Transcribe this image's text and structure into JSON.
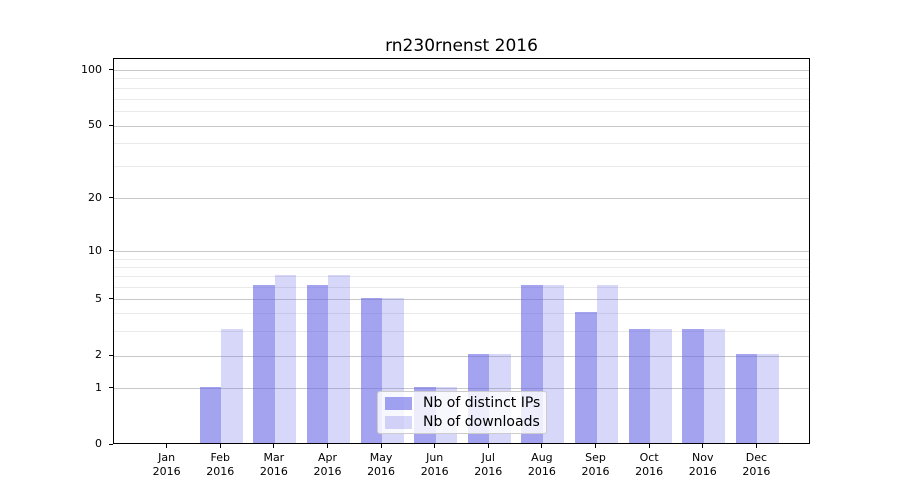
{
  "title": "rn230rnenst 2016",
  "chart_data": {
    "type": "bar",
    "title": "rn230rnenst 2016",
    "categories": [
      "Jan",
      "Feb",
      "Mar",
      "Apr",
      "May",
      "Jun",
      "Jul",
      "Aug",
      "Sep",
      "Oct",
      "Nov",
      "Dec"
    ],
    "category_sub_label": "2016",
    "series": [
      {
        "name": "Nb of distinct IPs",
        "color": "rgba(102,102,230,0.60)",
        "values": [
          0,
          1,
          6,
          6,
          5,
          1,
          2,
          6,
          4,
          3,
          3,
          2
        ]
      },
      {
        "name": "Nb of downloads",
        "color": "rgba(102,102,230,0.26)",
        "values": [
          0,
          3,
          7,
          7,
          5,
          1,
          2,
          6,
          6,
          3,
          3,
          2
        ]
      }
    ],
    "xlabel": "",
    "ylabel": "",
    "y_axis": {
      "scale": "symlog",
      "ylim": [
        0,
        115
      ],
      "major_ticks": [
        0,
        1,
        2,
        5,
        10,
        20,
        50,
        100
      ],
      "minor_ticks": [
        3,
        4,
        6,
        7,
        8,
        9,
        30,
        40,
        60,
        70,
        80,
        90
      ],
      "anchors": [
        [
          0,
          0
        ],
        [
          1,
          0.1453
        ],
        [
          2,
          0.2296
        ],
        [
          5,
          0.3761
        ],
        [
          10,
          0.5006
        ],
        [
          20,
          0.6381
        ],
        [
          50,
          0.8262
        ],
        [
          100,
          0.9702
        ],
        [
          115,
          1.0
        ]
      ]
    },
    "grid": true,
    "legend_position": "lower-center",
    "bar_group_width_ratio": 0.8,
    "colors": {
      "grid_major": "#c9c9c9",
      "grid_minor": "#e9e9e9",
      "axis": "#000000"
    }
  }
}
